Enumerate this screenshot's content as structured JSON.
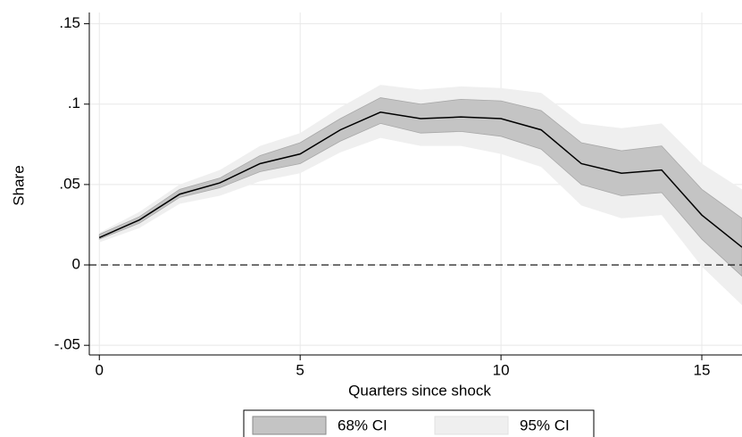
{
  "chart_data": {
    "type": "line",
    "xlabel": "Quarters since shock",
    "ylabel": "Share",
    "x": [
      0,
      1,
      2,
      3,
      4,
      5,
      6,
      7,
      8,
      9,
      10,
      11,
      12,
      13,
      14,
      15,
      16
    ],
    "line": {
      "color": "#000000",
      "values": [
        0.017,
        0.028,
        0.044,
        0.051,
        0.063,
        0.069,
        0.084,
        0.095,
        0.091,
        0.092,
        0.091,
        0.084,
        0.063,
        0.057,
        0.059,
        0.031,
        0.011
      ]
    },
    "bands": [
      {
        "name": "95% CI",
        "color": "#efefef",
        "lower": [
          0.014,
          0.023,
          0.038,
          0.043,
          0.052,
          0.057,
          0.07,
          0.079,
          0.074,
          0.074,
          0.069,
          0.061,
          0.037,
          0.029,
          0.031,
          -0.001,
          -0.025
        ],
        "upper": [
          0.02,
          0.033,
          0.05,
          0.059,
          0.074,
          0.082,
          0.098,
          0.112,
          0.109,
          0.111,
          0.11,
          0.107,
          0.088,
          0.085,
          0.088,
          0.063,
          0.047
        ]
      },
      {
        "name": "68% CI",
        "color": "#c4c4c4",
        "lower": [
          0.016,
          0.026,
          0.042,
          0.048,
          0.058,
          0.063,
          0.077,
          0.088,
          0.082,
          0.083,
          0.08,
          0.072,
          0.05,
          0.043,
          0.045,
          0.016,
          -0.007
        ],
        "upper": [
          0.019,
          0.03,
          0.047,
          0.054,
          0.068,
          0.076,
          0.091,
          0.104,
          0.1,
          0.103,
          0.102,
          0.096,
          0.076,
          0.071,
          0.074,
          0.047,
          0.029
        ]
      }
    ],
    "legend_order": [
      1,
      0
    ],
    "hline": 0,
    "xlim": [
      -0.25,
      16
    ],
    "ylim": [
      -0.056,
      0.157
    ],
    "xticks": [
      0,
      5,
      10,
      15
    ],
    "yticks": [
      {
        "value": -0.05,
        "label": "-.05"
      },
      0,
      {
        "value": 0.05,
        "label": ".05"
      },
      {
        "value": 0.1,
        "label": ".1"
      },
      {
        "value": 0.15,
        "label": ".15"
      }
    ],
    "grid": true
  }
}
